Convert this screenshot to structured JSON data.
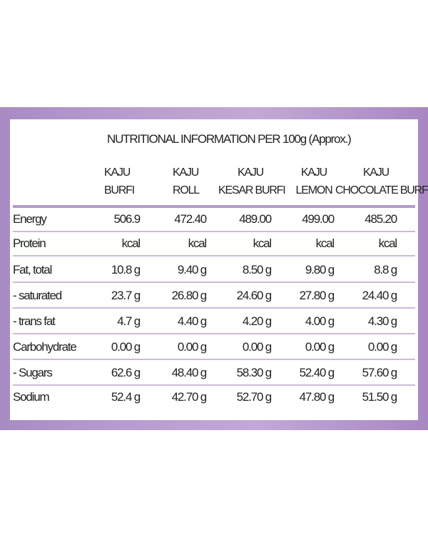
{
  "title": "NUTRITIONAL INFORMATION PER 100g (Approx.)",
  "columns": [
    {
      "line1": "KAJU",
      "line2": "BURFI"
    },
    {
      "line1": "KAJU",
      "line2": "ROLL"
    },
    {
      "line1": "KAJU",
      "line2": "KESAR BURFI"
    },
    {
      "line1": "KAJU",
      "line2": "LEMON"
    },
    {
      "line1": "KAJU",
      "line2": "CHOCOLATE BURFI"
    }
  ],
  "rows": [
    {
      "label": "Energy",
      "values": [
        "506.9",
        "472.40",
        "489.00",
        "499.00",
        "485.20"
      ]
    },
    {
      "label": "Protein",
      "values": [
        "kcal",
        "kcal",
        "kcal",
        "kcal",
        "kcal"
      ]
    },
    {
      "label": "Fat, total",
      "values": [
        "10.8 g",
        "9.40 g",
        "8.50 g",
        "9.80 g",
        "8.8 g"
      ]
    },
    {
      "label": " - saturated",
      "values": [
        "23.7 g",
        "26.80 g",
        "24.60 g",
        "27.80 g",
        "24.40 g"
      ]
    },
    {
      "label": " - trans fat",
      "values": [
        "4.7 g",
        "4.40 g",
        "4.20 g",
        "4.00 g",
        "4.30 g"
      ]
    },
    {
      "label": "Carbohydrate",
      "values": [
        "0.00 g",
        "0.00 g",
        "0.00 g",
        "0.00 g",
        "0.00 g"
      ]
    },
    {
      "label": " - Sugars",
      "values": [
        "62.6 g",
        "48.40 g",
        "58.30 g",
        "52.40 g",
        "57.60 g"
      ]
    },
    {
      "label": "Sodium",
      "values": [
        "52.4 g",
        "42.70 g",
        "52.70 g",
        "47.80 g",
        "51.50 g"
      ]
    }
  ],
  "colors": {
    "band": "#b89ccf",
    "rule": "#cbbad9",
    "header_rule": "#b59acb"
  }
}
